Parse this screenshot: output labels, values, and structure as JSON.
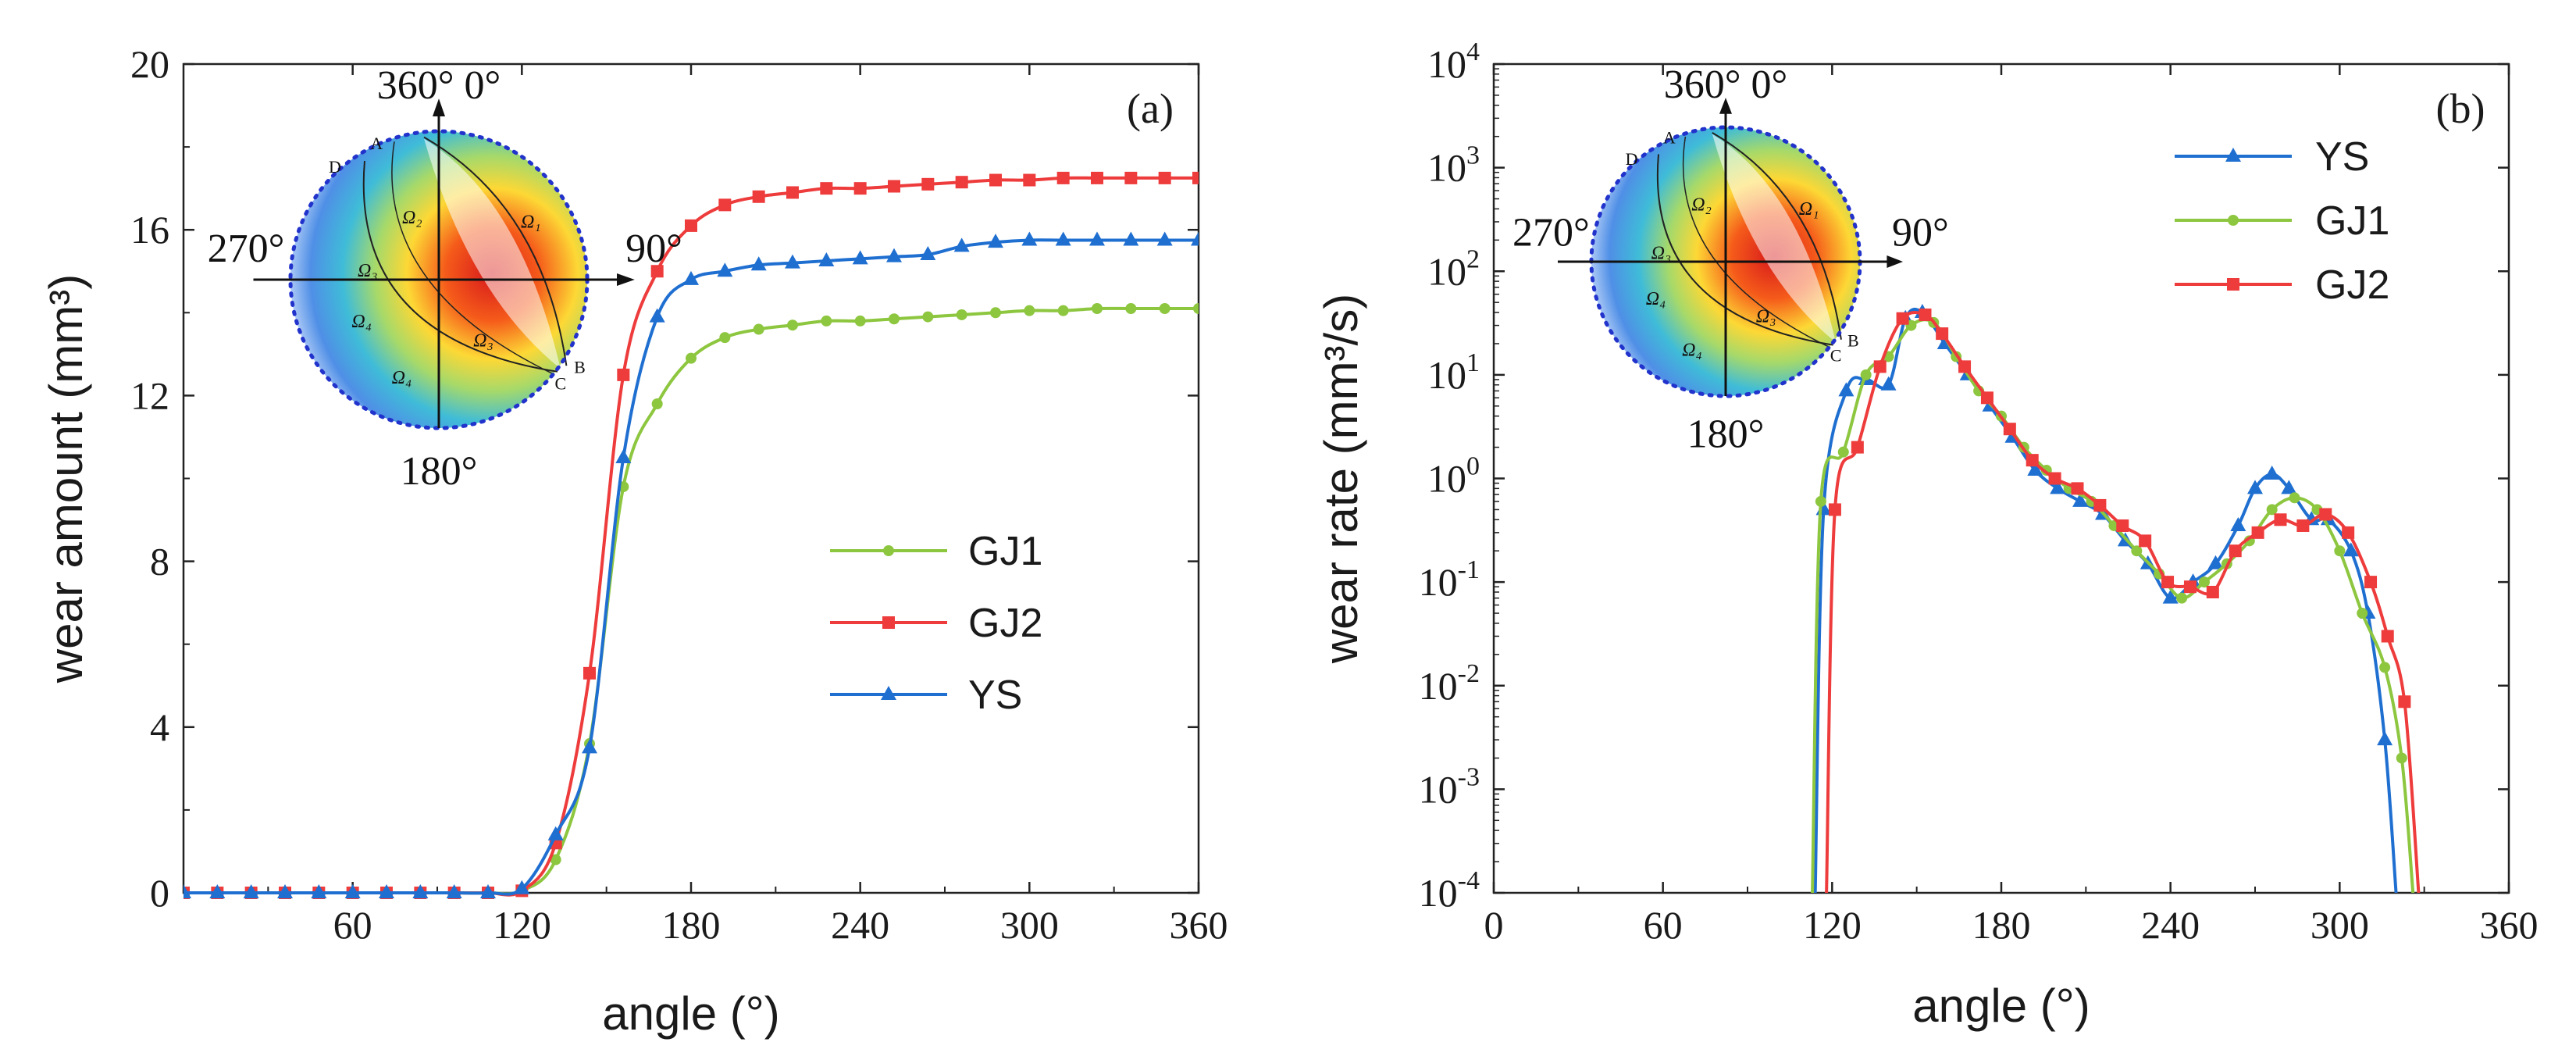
{
  "chart_data": [
    {
      "type": "line",
      "panel_label": "(a)",
      "xlabel": "angle (°)",
      "ylabel": "wear amount (mm³)",
      "xlim": [
        0,
        360
      ],
      "ylim": [
        0,
        20
      ],
      "x_ticks": [
        60,
        120,
        180,
        240,
        300,
        360
      ],
      "x_tick_labels": [
        "60",
        "120",
        "180",
        "240",
        "300",
        "360"
      ],
      "y_ticks": [
        0,
        4,
        8,
        12,
        16,
        20
      ],
      "y_tick_labels": [
        "0",
        "4",
        "8",
        "12",
        "16",
        "20"
      ],
      "legend_position": "center-right",
      "legend_order": [
        "GJ1",
        "GJ2",
        "YS"
      ],
      "series": [
        {
          "name": "GJ1",
          "color": "#8dc63f",
          "marker": "circle",
          "x": [
            0,
            12,
            24,
            36,
            48,
            60,
            72,
            84,
            96,
            108,
            120,
            132,
            144,
            156,
            168,
            180,
            192,
            204,
            216,
            228,
            240,
            252,
            264,
            276,
            288,
            300,
            312,
            324,
            336,
            348,
            360
          ],
          "values": [
            0,
            0,
            0,
            0,
            0,
            0,
            0,
            0,
            0,
            0,
            0.05,
            0.8,
            3.6,
            9.8,
            11.8,
            12.9,
            13.4,
            13.6,
            13.7,
            13.8,
            13.8,
            13.85,
            13.9,
            13.95,
            14.0,
            14.05,
            14.05,
            14.1,
            14.1,
            14.1,
            14.1
          ]
        },
        {
          "name": "GJ2",
          "color": "#ee3b3b",
          "marker": "square",
          "x": [
            0,
            12,
            24,
            36,
            48,
            60,
            72,
            84,
            96,
            108,
            120,
            132,
            144,
            156,
            168,
            180,
            192,
            204,
            216,
            228,
            240,
            252,
            264,
            276,
            288,
            300,
            312,
            324,
            336,
            348,
            360
          ],
          "values": [
            0,
            0,
            0,
            0,
            0,
            0,
            0,
            0,
            0,
            0,
            0.05,
            1.2,
            5.3,
            12.5,
            15.0,
            16.1,
            16.6,
            16.8,
            16.9,
            17.0,
            17.0,
            17.05,
            17.1,
            17.15,
            17.2,
            17.2,
            17.25,
            17.25,
            17.25,
            17.25,
            17.25
          ]
        },
        {
          "name": "YS",
          "color": "#1f6fd1",
          "marker": "triangle",
          "x": [
            0,
            12,
            24,
            36,
            48,
            60,
            72,
            84,
            96,
            108,
            120,
            132,
            144,
            156,
            168,
            180,
            192,
            204,
            216,
            228,
            240,
            252,
            264,
            276,
            288,
            300,
            312,
            324,
            336,
            348,
            360
          ],
          "values": [
            0,
            0,
            0,
            0,
            0,
            0,
            0,
            0,
            0,
            0,
            0.1,
            1.4,
            3.5,
            10.5,
            13.9,
            14.8,
            15.0,
            15.15,
            15.2,
            15.25,
            15.3,
            15.35,
            15.4,
            15.6,
            15.7,
            15.75,
            15.75,
            15.75,
            15.75,
            15.75,
            15.75
          ]
        }
      ],
      "inset_labels": {
        "top": "360° 0°",
        "left": "270°",
        "right": "90°",
        "bottom": "180°"
      }
    },
    {
      "type": "line",
      "panel_label": "(b)",
      "xlabel": "angle (°)",
      "ylabel": "wear rate (mm³/s)",
      "yscale": "log",
      "xlim": [
        0,
        360
      ],
      "ylim": [
        0.0001,
        10000
      ],
      "x_ticks": [
        0,
        60,
        120,
        180,
        240,
        300,
        360
      ],
      "x_tick_labels": [
        "0",
        "60",
        "120",
        "180",
        "240",
        "300",
        "360"
      ],
      "y_tick_exponents": [
        -4,
        -3,
        -2,
        -1,
        0,
        1,
        2,
        3,
        4
      ],
      "y_tick_base": "10",
      "legend_position": "top-center",
      "legend_order": [
        "YS",
        "GJ1",
        "GJ2"
      ],
      "series": [
        {
          "name": "YS",
          "color": "#1f6fd1",
          "marker": "triangle",
          "x": [
            114,
            117,
            125,
            132,
            140,
            146,
            152,
            160,
            168,
            176,
            184,
            192,
            200,
            208,
            216,
            224,
            232,
            240,
            248,
            256,
            264,
            270,
            276,
            282,
            290,
            296,
            304,
            310,
            316,
            320
          ],
          "values": [
            0.0001,
            0.5,
            7,
            9,
            8,
            35,
            40,
            20,
            10,
            5,
            2.5,
            1.2,
            0.8,
            0.6,
            0.45,
            0.25,
            0.15,
            0.07,
            0.1,
            0.15,
            0.35,
            0.8,
            1.1,
            0.8,
            0.4,
            0.4,
            0.2,
            0.05,
            0.003,
            0.0001
          ]
        },
        {
          "name": "GJ1",
          "color": "#8dc63f",
          "marker": "circle",
          "x": [
            113,
            116,
            124,
            132,
            140,
            148,
            156,
            164,
            172,
            180,
            188,
            196,
            204,
            212,
            220,
            228,
            236,
            244,
            252,
            260,
            268,
            276,
            284,
            292,
            300,
            308,
            316,
            322,
            326
          ],
          "values": [
            0.0001,
            0.6,
            1.8,
            10,
            15,
            30,
            32,
            15,
            7,
            4,
            2,
            1.2,
            0.8,
            0.6,
            0.35,
            0.2,
            0.12,
            0.07,
            0.1,
            0.15,
            0.25,
            0.5,
            0.65,
            0.5,
            0.2,
            0.05,
            0.015,
            0.002,
            0.0001
          ]
        },
        {
          "name": "GJ2",
          "color": "#ee3b3b",
          "marker": "square",
          "x": [
            118,
            121,
            129,
            137,
            145,
            153,
            159,
            167,
            175,
            183,
            191,
            199,
            207,
            215,
            223,
            231,
            239,
            247,
            255,
            263,
            271,
            279,
            287,
            295,
            303,
            311,
            317,
            323,
            328
          ],
          "values": [
            0.0001,
            0.5,
            2,
            12,
            35,
            38,
            25,
            12,
            6,
            3,
            1.5,
            1.0,
            0.8,
            0.55,
            0.35,
            0.25,
            0.1,
            0.09,
            0.08,
            0.2,
            0.3,
            0.4,
            0.35,
            0.45,
            0.3,
            0.1,
            0.03,
            0.007,
            0.0001
          ]
        }
      ],
      "inset_labels": {
        "top": "360° 0°",
        "left": "270°",
        "right": "90°",
        "bottom": "180°"
      }
    }
  ],
  "inset_region_labels": {
    "points": [
      "A",
      "B",
      "C",
      "D"
    ],
    "omegas": [
      "Ω₁",
      "Ω₂",
      "Ω₃",
      "Ω₃",
      "Ω₄",
      "Ω₄"
    ]
  }
}
